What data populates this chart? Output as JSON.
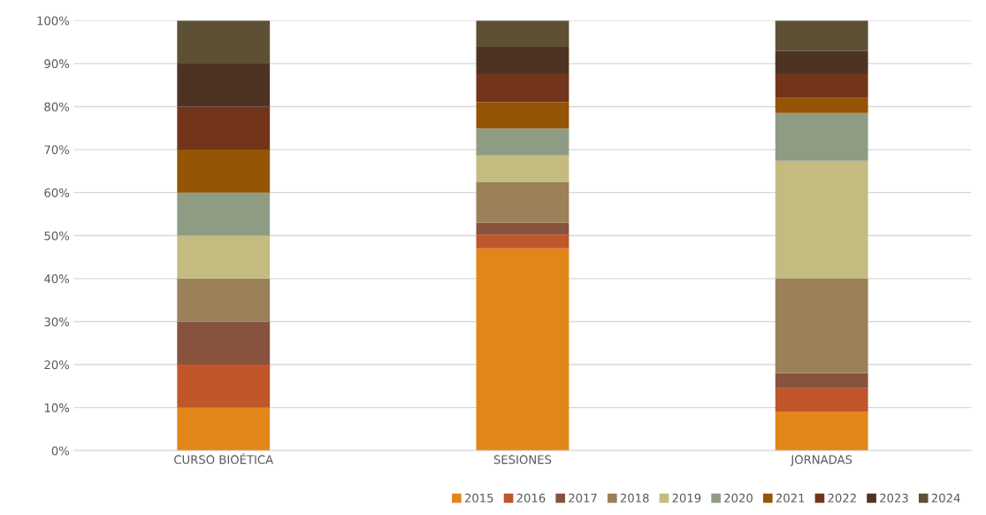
{
  "chart_data": {
    "type": "bar",
    "stacked": true,
    "categories": [
      "CURSO BIOÉTICA",
      "SESIONES",
      "JORNADAS"
    ],
    "ylim": [
      0,
      100
    ],
    "yticks": [
      {
        "value": 0,
        "label": "0%"
      },
      {
        "value": 10,
        "label": "10%"
      },
      {
        "value": 20,
        "label": "20%"
      },
      {
        "value": 30,
        "label": "30%"
      },
      {
        "value": 40,
        "label": "40%"
      },
      {
        "value": 50,
        "label": "50%"
      },
      {
        "value": 60,
        "label": "60%"
      },
      {
        "value": 70,
        "label": "70%"
      },
      {
        "value": 80,
        "label": "80%"
      },
      {
        "value": 90,
        "label": "90%"
      },
      {
        "value": 100,
        "label": "100%"
      }
    ],
    "grid": "y",
    "legend": "bottom right",
    "series": [
      {
        "name": "2015",
        "color": "#e3861a",
        "values": [
          10,
          47,
          9.1
        ]
      },
      {
        "name": "2016",
        "color": "#c0562a",
        "values": [
          10,
          3.2,
          5.4
        ]
      },
      {
        "name": "2017",
        "color": "#87533e",
        "values": [
          10,
          2.8,
          3.5
        ]
      },
      {
        "name": "2018",
        "color": "#9c8058",
        "values": [
          10,
          9.4,
          22.1
        ]
      },
      {
        "name": "2019",
        "color": "#c4bb80",
        "values": [
          10,
          6.2,
          27.3
        ]
      },
      {
        "name": "2020",
        "color": "#8f9c84",
        "values": [
          10,
          6.3,
          11.1
        ]
      },
      {
        "name": "2021",
        "color": "#965406",
        "values": [
          10,
          6.2,
          3.5
        ]
      },
      {
        "name": "2022",
        "color": "#72351c",
        "values": [
          10,
          6.6,
          5.7
        ]
      },
      {
        "name": "2023",
        "color": "#4f3322",
        "values": [
          10,
          6.2,
          5.2
        ]
      },
      {
        "name": "2024",
        "color": "#5e5035",
        "values": [
          10,
          6.1,
          7.1
        ]
      }
    ]
  }
}
